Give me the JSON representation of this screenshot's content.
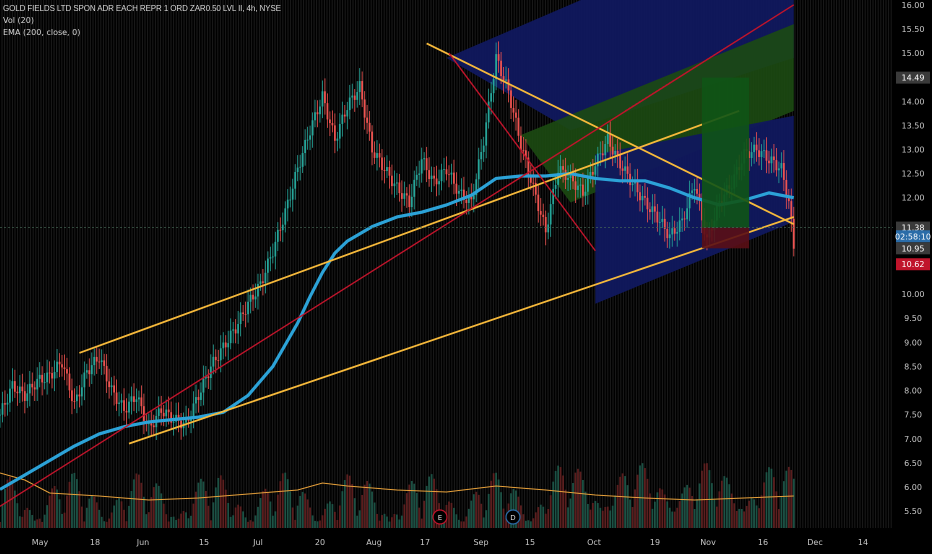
{
  "legend": {
    "title": "GOLD FIELDS LTD SPON ADR EACH REPR 1 ORD ZAR0.50 LVL II, 4h, NYSE",
    "vol": "Vol (20)",
    "ema": "EMA (200, close, 0)"
  },
  "colors": {
    "background": "#000000",
    "up": "#26a69a",
    "down": "#ef5350",
    "ema": "#2ca3d8",
    "trend_orange": "#f6b93b",
    "trend_red": "#c0142b",
    "volume_ma": "#e9a23b",
    "gridline": "#1b1b1b"
  },
  "chart_data": {
    "type": "line",
    "y_axis_ticks": [
      "16.00",
      "15.50",
      "15.00",
      "14.49",
      "14.00",
      "13.50",
      "13.00",
      "12.50",
      "12.00",
      "11.38",
      "02:58:10",
      "10.95",
      "10.62",
      "10.00",
      "9.50",
      "9.00",
      "8.50",
      "8.00",
      "7.50",
      "7.00",
      "6.50",
      "6.00",
      "5.50"
    ],
    "y_ticks_numeric": [
      16.0,
      15.5,
      15.0,
      14.0,
      13.5,
      13.0,
      12.5,
      12.0,
      10.0,
      9.5,
      9.0,
      8.5,
      8.0,
      7.5,
      7.0,
      6.5,
      6.0,
      5.5
    ],
    "ylim": [
      5.15,
      16.1
    ],
    "x_axis_labels": [
      "May",
      "18",
      "Jun",
      "15",
      "Jul",
      "20",
      "Aug",
      "17",
      "Sep",
      "15",
      "Oct",
      "19",
      "Nov",
      "16",
      "Dec",
      "14"
    ],
    "price_labels": [
      {
        "text": "14.49",
        "value": 14.49,
        "color": "#3a3a3a"
      },
      {
        "text": "11.38",
        "value": 11.38,
        "color": "#3a3a3a"
      },
      {
        "text": "02:58:10",
        "value": 11.2,
        "color": "#2a6ca8"
      },
      {
        "text": "10.95",
        "value": 10.95,
        "color": "#3a3a3a"
      },
      {
        "text": "10.62",
        "value": 10.62,
        "color": "#c0142b"
      }
    ],
    "ema_200": {
      "name": "EMA (200, close, 0)",
      "x_index": [
        0,
        10,
        20,
        30,
        40,
        50,
        60,
        70,
        80,
        90,
        100,
        110,
        115,
        120,
        125,
        130,
        135,
        140,
        145,
        150,
        160,
        170,
        180,
        190,
        200,
        210,
        220,
        230,
        240,
        250,
        260,
        270,
        280,
        290,
        300,
        310,
        315,
        320
      ],
      "values": [
        5.95,
        6.25,
        6.55,
        6.85,
        7.1,
        7.25,
        7.35,
        7.4,
        7.45,
        7.55,
        7.9,
        8.5,
        8.95,
        9.4,
        9.95,
        10.45,
        10.85,
        11.1,
        11.25,
        11.4,
        11.6,
        11.7,
        11.85,
        12.05,
        12.4,
        12.45,
        12.45,
        12.5,
        12.4,
        12.35,
        12.35,
        12.2,
        12.0,
        11.85,
        11.95,
        12.1,
        12.05,
        12.0
      ]
    },
    "price_line": {
      "name": "close",
      "x_index": [
        0,
        5,
        10,
        15,
        20,
        25,
        30,
        35,
        40,
        45,
        50,
        55,
        60,
        65,
        70,
        75,
        80,
        85,
        90,
        95,
        100,
        105,
        110,
        115,
        120,
        125,
        130,
        135,
        140,
        145,
        150,
        155,
        160,
        165,
        170,
        175,
        180,
        185,
        190,
        195,
        200,
        205,
        210,
        215,
        220,
        225,
        230,
        235,
        240,
        245,
        250,
        255,
        260,
        265,
        270,
        275,
        280,
        285,
        290,
        295,
        300,
        305,
        310,
        315,
        318,
        320
      ],
      "values": [
        7.5,
        8.1,
        7.9,
        8.2,
        8.3,
        8.6,
        7.7,
        8.4,
        8.7,
        8.0,
        7.6,
        7.9,
        7.2,
        7.6,
        7.4,
        7.3,
        7.9,
        8.5,
        8.9,
        9.3,
        9.8,
        10.2,
        10.9,
        11.7,
        12.6,
        13.4,
        14.1,
        13.2,
        13.9,
        14.3,
        13.0,
        12.6,
        12.2,
        11.9,
        12.8,
        12.3,
        12.6,
        12.1,
        11.9,
        13.2,
        14.9,
        14.2,
        13.1,
        12.2,
        11.3,
        12.6,
        12.4,
        12.1,
        12.7,
        13.2,
        12.7,
        12.3,
        11.9,
        11.6,
        11.2,
        11.5,
        12.3,
        11.1,
        11.9,
        12.3,
        12.9,
        13.0,
        12.8,
        12.6,
        11.9,
        11.0
      ]
    },
    "trendlines": [
      {
        "name": "upper channel",
        "color": "#f6b93b",
        "from": [
          32,
          8.78
        ],
        "to": [
          298,
          13.8
        ]
      },
      {
        "name": "lower channel",
        "color": "#f6b93b",
        "from": [
          52,
          6.9
        ],
        "to": [
          320,
          11.6
        ]
      },
      {
        "name": "descending line",
        "color": "#f6b93b",
        "from": [
          172,
          15.2
        ],
        "to": [
          320,
          11.45
        ]
      },
      {
        "name": "red diagonal",
        "color": "#c0142b",
        "from": [
          0,
          5.6
        ],
        "to": [
          320,
          16.0
        ]
      },
      {
        "name": "red fall",
        "color": "#c0142b",
        "from": [
          181,
          15.0
        ],
        "to": [
          240,
          10.9
        ]
      }
    ],
    "volume_ma": {
      "name": "Vol (20) MA",
      "x_index": [
        0,
        10,
        20,
        40,
        60,
        80,
        100,
        120,
        130,
        140,
        160,
        180,
        200,
        220,
        240,
        260,
        280,
        300,
        320
      ],
      "values": [
        0.55,
        0.48,
        0.35,
        0.32,
        0.28,
        0.3,
        0.34,
        0.38,
        0.45,
        0.42,
        0.38,
        0.36,
        0.42,
        0.38,
        0.33,
        0.3,
        0.28,
        0.3,
        0.32
      ]
    }
  }
}
